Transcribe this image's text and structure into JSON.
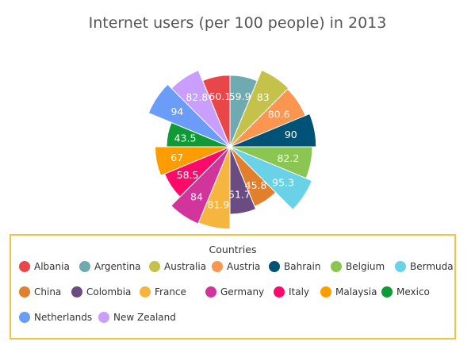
{
  "chart_data": {
    "type": "pie",
    "title": "Internet users (per 100 people) in 2013",
    "legend_title": "Countries",
    "legend_position": "bottom",
    "slices": [
      {
        "name": "Albania",
        "value": 60.1,
        "color": "#E94649"
      },
      {
        "name": "Argentina",
        "value": 59.9,
        "color": "#6FAAB0"
      },
      {
        "name": "Australia",
        "value": 83,
        "color": "#C4C24A"
      },
      {
        "name": "Austria",
        "value": 80.6,
        "color": "#FB954F"
      },
      {
        "name": "Bahrain",
        "value": 90,
        "color": "#005277"
      },
      {
        "name": "Belgium",
        "value": 82.2,
        "color": "#8BC652"
      },
      {
        "name": "Bermuda",
        "value": 95.3,
        "color": "#69D2E7"
      },
      {
        "name": "China",
        "value": 45.8,
        "color": "#E27F2D"
      },
      {
        "name": "Colombia",
        "value": 51.7,
        "color": "#6A4B82"
      },
      {
        "name": "France",
        "value": 81.9,
        "color": "#F6B53F"
      },
      {
        "name": "Germany",
        "value": 84,
        "color": "#D1359C"
      },
      {
        "name": "Italy",
        "value": 58.5,
        "color": "#FF0A6B"
      },
      {
        "name": "Malaysia",
        "value": 67,
        "color": "#FF9D00"
      },
      {
        "name": "Mexico",
        "value": 43.5,
        "color": "#0F9A35"
      },
      {
        "name": "Netherlands",
        "value": 94,
        "color": "#6B9CF7"
      },
      {
        "name": "New Zealand",
        "value": 82.8,
        "color": "#C99EFE"
      }
    ]
  }
}
